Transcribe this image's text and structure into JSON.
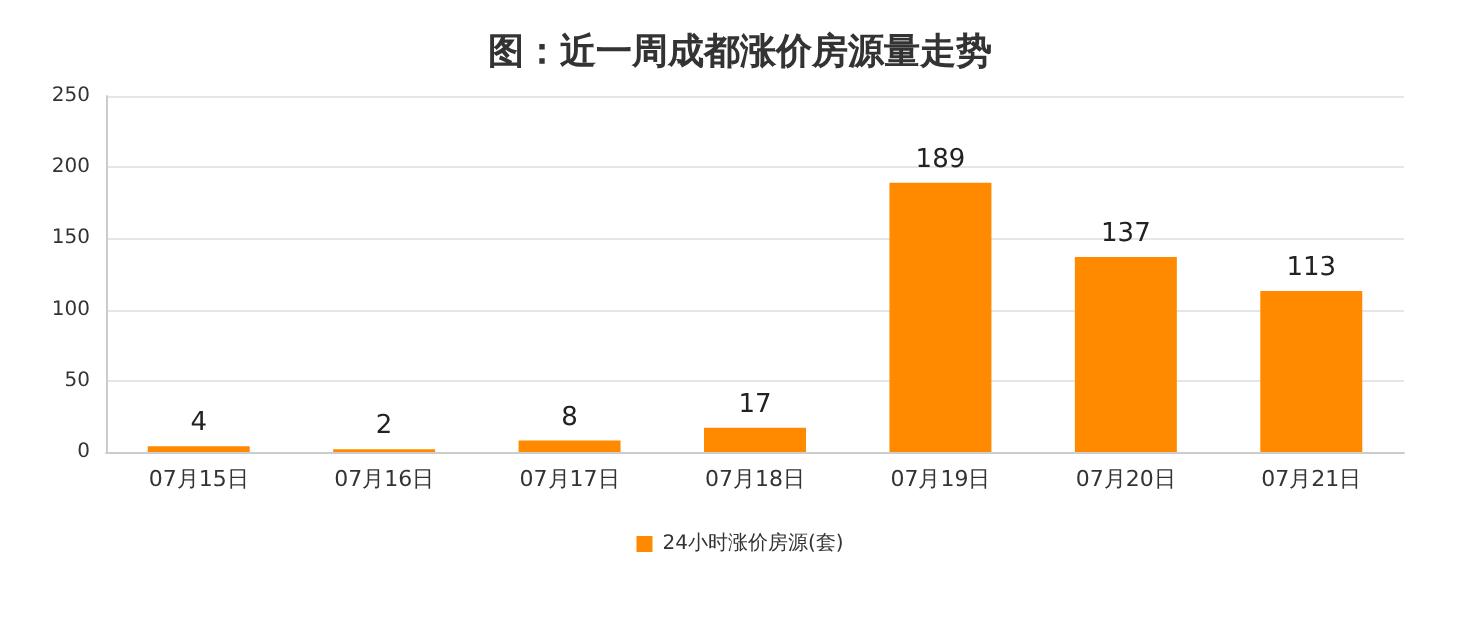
{
  "chart_data": {
    "type": "bar",
    "title": "图：近一周成都涨价房源量走势",
    "categories": [
      "07月15日",
      "07月16日",
      "07月17日",
      "07月18日",
      "07月19日",
      "07月20日",
      "07月21日"
    ],
    "series": [
      {
        "name": "24小时涨价房源(套)",
        "color": "#ff8a00",
        "values": [
          4,
          2,
          8,
          17,
          189,
          137,
          113
        ]
      }
    ],
    "ylim": [
      0,
      250
    ],
    "yticks": [
      0,
      50,
      100,
      150,
      200,
      250
    ],
    "grid": "y",
    "legend": "bottom",
    "data_labels": true
  }
}
